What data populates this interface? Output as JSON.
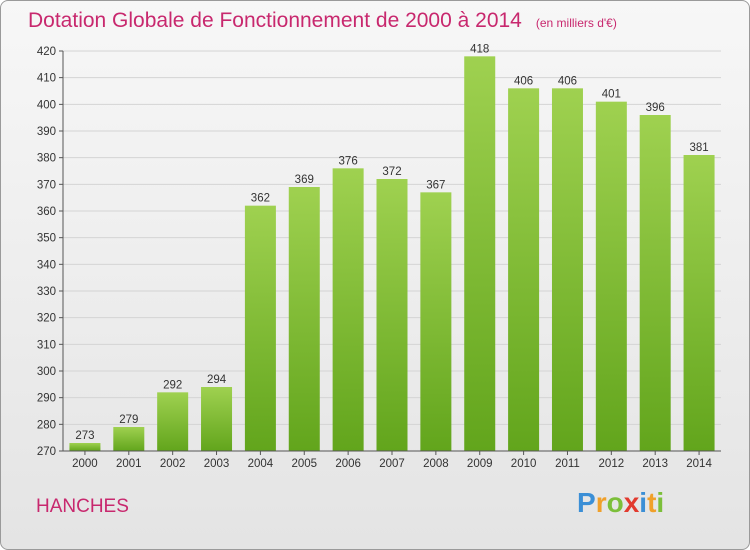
{
  "title": "Dotation Globale de Fonctionnement de 2000 à 2014",
  "unit_note": "(en milliers d'€)",
  "commune": "HANCHES",
  "logo": {
    "letters": [
      "P",
      "r",
      "o",
      "x",
      "i",
      "t",
      "i"
    ],
    "colors": [
      "#3b8fd6",
      "#f0a02a",
      "#7cbf3a",
      "#e23a2e",
      "#3b8fd6",
      "#f0a02a",
      "#7cbf3a"
    ]
  },
  "chart_data": {
    "type": "bar",
    "title": "Dotation Globale de Fonctionnement de 2000 à 2014",
    "categories": [
      "2000",
      "2001",
      "2002",
      "2003",
      "2004",
      "2005",
      "2006",
      "2007",
      "2008",
      "2009",
      "2010",
      "2011",
      "2012",
      "2013",
      "2014"
    ],
    "values": [
      273,
      279,
      292,
      294,
      362,
      369,
      376,
      372,
      367,
      418,
      406,
      406,
      401,
      396,
      381
    ],
    "ylim": [
      270,
      420
    ],
    "yticks": [
      270,
      280,
      290,
      300,
      310,
      320,
      330,
      340,
      350,
      360,
      370,
      380,
      390,
      400,
      410,
      420
    ],
    "grid": true,
    "bar_color_top": "#9fd150",
    "bar_color_bottom": "#62a51c"
  }
}
